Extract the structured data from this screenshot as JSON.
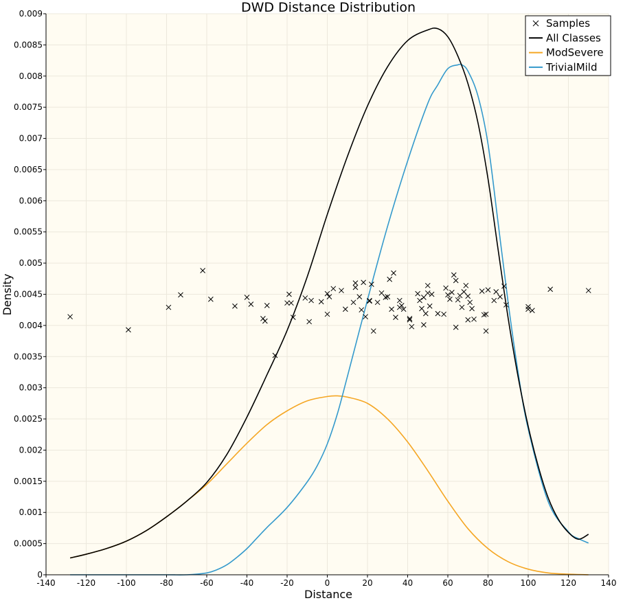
{
  "chart_data": {
    "type": "line",
    "title": "DWD Distance Distribution",
    "xlabel": "Distance",
    "ylabel": "Density",
    "xlim": [
      -140,
      140
    ],
    "ylim": [
      0,
      0.009
    ],
    "grid": true,
    "legend_position": "top-right",
    "background": "#fffcf2",
    "x_ticks": [
      -140,
      -120,
      -100,
      -80,
      -60,
      -40,
      -20,
      0,
      20,
      40,
      60,
      80,
      100,
      120,
      140
    ],
    "x_tick_labels": [
      "-140",
      "-120",
      "-100",
      "-80",
      "-60",
      "-40",
      "-20",
      "0",
      "20",
      "40",
      "60",
      "80",
      "100",
      "120",
      "140"
    ],
    "y_ticks": [
      0,
      0.0005,
      0.001,
      0.0015,
      0.002,
      0.0025,
      0.003,
      0.0035,
      0.004,
      0.0045,
      0.005,
      0.0055,
      0.006,
      0.0065,
      0.007,
      0.0075,
      0.008,
      0.0085,
      0.009
    ],
    "y_tick_labels": [
      "0",
      "0.0005",
      "0.001",
      "0.0015",
      "0.002",
      "0.0025",
      "0.003",
      "0.0035",
      "0.004",
      "0.0045",
      "0.005",
      "0.0055",
      "0.006",
      "0.0065",
      "0.007",
      "0.0075",
      "0.008",
      "0.0085",
      "0.009"
    ],
    "legend": [
      {
        "name": "Samples",
        "kind": "marker",
        "color": "#000000"
      },
      {
        "name": "All Classes",
        "kind": "line",
        "color": "#000000"
      },
      {
        "name": "ModSevere",
        "kind": "line",
        "color": "#f5a623"
      },
      {
        "name": "TrivialMild",
        "kind": "line",
        "color": "#3399cc"
      }
    ],
    "series": [
      {
        "name": "All Classes",
        "color": "#000000",
        "x": [
          -128,
          -120,
          -110,
          -100,
          -90,
          -80,
          -70,
          -60,
          -50,
          -40,
          -30,
          -20,
          -10,
          0,
          10,
          20,
          30,
          40,
          50,
          55,
          60,
          65,
          70,
          75,
          80,
          85,
          90,
          95,
          100,
          105,
          110,
          115,
          120,
          125,
          130
        ],
        "y": [
          0.00027,
          0.00033,
          0.00042,
          0.00054,
          0.00071,
          0.00093,
          0.00118,
          0.00148,
          0.00193,
          0.00253,
          0.00321,
          0.00392,
          0.00478,
          0.00578,
          0.00671,
          0.00752,
          0.00815,
          0.00857,
          0.00874,
          0.00876,
          0.00863,
          0.00832,
          0.00788,
          0.00725,
          0.00635,
          0.00522,
          0.00412,
          0.00317,
          0.00238,
          0.00174,
          0.00123,
          0.00089,
          0.00068,
          0.00057,
          0.00065
        ]
      },
      {
        "name": "ModSevere",
        "color": "#f5a623",
        "x": [
          -128,
          -120,
          -110,
          -100,
          -90,
          -80,
          -70,
          -60,
          -50,
          -40,
          -30,
          -20,
          -10,
          0,
          5,
          10,
          20,
          30,
          40,
          50,
          60,
          70,
          80,
          90,
          100,
          110,
          120,
          130
        ],
        "y": [
          0.00027,
          0.00033,
          0.00042,
          0.00054,
          0.00071,
          0.00093,
          0.00118,
          0.00145,
          0.00178,
          0.00211,
          0.00241,
          0.00263,
          0.00279,
          0.00286,
          0.00287,
          0.00285,
          0.00275,
          0.0025,
          0.00213,
          0.00167,
          0.00118,
          0.00074,
          0.00042,
          0.00021,
          9e-05,
          3e-05,
          1e-05,
          0.0
        ]
      },
      {
        "name": "TrivialMild",
        "color": "#3399cc",
        "x": [
          -128,
          -100,
          -80,
          -70,
          -60,
          -55,
          -50,
          -45,
          -40,
          -35,
          -30,
          -20,
          -10,
          -5,
          0,
          5,
          10,
          20,
          30,
          40,
          50,
          55,
          60,
          65,
          67,
          70,
          75,
          80,
          85,
          90,
          95,
          100,
          110,
          120,
          125,
          130
        ],
        "y": [
          0.0,
          0.0,
          0.0,
          0.0,
          3e-05,
          8e-05,
          0.00016,
          0.00028,
          0.00042,
          0.00059,
          0.00076,
          0.00108,
          0.00149,
          0.00175,
          0.0021,
          0.00258,
          0.00318,
          0.00441,
          0.00559,
          0.00664,
          0.00756,
          0.00786,
          0.00812,
          0.00818,
          0.00818,
          0.00808,
          0.00768,
          0.00691,
          0.00565,
          0.00437,
          0.00324,
          0.00234,
          0.00117,
          0.00069,
          0.00058,
          0.00051
        ]
      }
    ],
    "samples": {
      "name": "Samples",
      "marker": "x",
      "color": "#000000",
      "points": [
        [
          -128,
          0.00414
        ],
        [
          -99,
          0.00393
        ],
        [
          -79,
          0.00429
        ],
        [
          -73,
          0.00449
        ],
        [
          -62,
          0.00488
        ],
        [
          -58,
          0.00442
        ],
        [
          -46,
          0.00431
        ],
        [
          -40,
          0.00445
        ],
        [
          -38,
          0.00434
        ],
        [
          -32,
          0.00411
        ],
        [
          -31,
          0.00407
        ],
        [
          -30,
          0.00432
        ],
        [
          -26,
          0.00352
        ],
        [
          -20,
          0.00436
        ],
        [
          -19,
          0.0045
        ],
        [
          -18,
          0.00436
        ],
        [
          -17,
          0.00413
        ],
        [
          -11,
          0.00444
        ],
        [
          -9,
          0.00406
        ],
        [
          -8,
          0.0044
        ],
        [
          -3,
          0.00438
        ],
        [
          0,
          0.00418
        ],
        [
          0,
          0.00451
        ],
        [
          1,
          0.00446
        ],
        [
          3,
          0.00459
        ],
        [
          7,
          0.00456
        ],
        [
          9,
          0.00426
        ],
        [
          13,
          0.00437
        ],
        [
          14,
          0.00461
        ],
        [
          14,
          0.00468
        ],
        [
          16,
          0.00446
        ],
        [
          17,
          0.00425
        ],
        [
          18,
          0.00469
        ],
        [
          19,
          0.00414
        ],
        [
          21,
          0.00439
        ],
        [
          21,
          0.0044
        ],
        [
          22,
          0.00466
        ],
        [
          23,
          0.00391
        ],
        [
          25,
          0.00437
        ],
        [
          27,
          0.00452
        ],
        [
          29,
          0.00445
        ],
        [
          30,
          0.00446
        ],
        [
          31,
          0.00474
        ],
        [
          33,
          0.00484
        ],
        [
          32,
          0.00426
        ],
        [
          34,
          0.00413
        ],
        [
          36,
          0.0044
        ],
        [
          36,
          0.00429
        ],
        [
          37,
          0.00432
        ],
        [
          38,
          0.00426
        ],
        [
          41,
          0.00411
        ],
        [
          41,
          0.00409
        ],
        [
          42,
          0.00398
        ],
        [
          45,
          0.00451
        ],
        [
          46,
          0.0044
        ],
        [
          47,
          0.00427
        ],
        [
          48,
          0.00445
        ],
        [
          48,
          0.00401
        ],
        [
          49,
          0.00419
        ],
        [
          50,
          0.00452
        ],
        [
          50,
          0.00464
        ],
        [
          51,
          0.00431
        ],
        [
          52,
          0.0045
        ],
        [
          55,
          0.00419
        ],
        [
          58,
          0.00418
        ],
        [
          59,
          0.0046
        ],
        [
          60,
          0.00449
        ],
        [
          61,
          0.00442
        ],
        [
          62,
          0.00453
        ],
        [
          63,
          0.00481
        ],
        [
          64,
          0.00472
        ],
        [
          64,
          0.00397
        ],
        [
          65,
          0.00441
        ],
        [
          66,
          0.00448
        ],
        [
          67,
          0.00429
        ],
        [
          68,
          0.00454
        ],
        [
          69,
          0.00464
        ],
        [
          70,
          0.00447
        ],
        [
          70,
          0.00409
        ],
        [
          71,
          0.00437
        ],
        [
          72,
          0.00427
        ],
        [
          73,
          0.0041
        ],
        [
          77,
          0.00455
        ],
        [
          78,
          0.00417
        ],
        [
          79,
          0.00391
        ],
        [
          79,
          0.00418
        ],
        [
          80,
          0.00457
        ],
        [
          83,
          0.0044
        ],
        [
          84,
          0.00454
        ],
        [
          86,
          0.00446
        ],
        [
          88,
          0.00463
        ],
        [
          89,
          0.00433
        ],
        [
          100,
          0.00426
        ],
        [
          100,
          0.0043
        ],
        [
          102,
          0.00424
        ],
        [
          111,
          0.00458
        ],
        [
          130,
          0.00456
        ]
      ]
    }
  }
}
